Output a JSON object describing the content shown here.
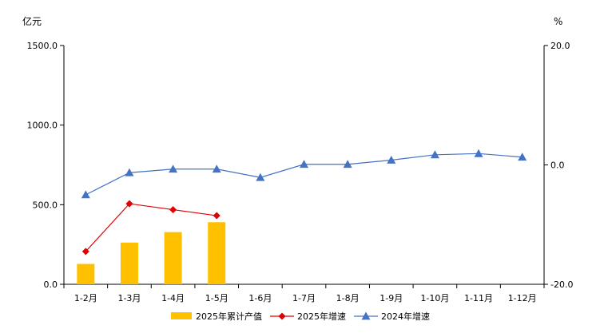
{
  "chart_data": {
    "type": "bar+line",
    "left_unit": "亿元",
    "right_unit": "%",
    "categories": [
      "1-2月",
      "1-3月",
      "1-4月",
      "1-5月",
      "1-6月",
      "1-7月",
      "1-8月",
      "1-9月",
      "1-10月",
      "1-11月",
      "1-12月"
    ],
    "left_axis": {
      "min": 0,
      "max": 1500,
      "ticks": [
        "0.0",
        "500.0",
        "1000.0",
        "1500.0"
      ]
    },
    "right_axis": {
      "min": -20,
      "max": 20,
      "ticks": [
        "-20.0",
        "0.0",
        "20.0"
      ]
    },
    "grid": false,
    "legend_position": "bottom",
    "series": [
      {
        "name": "2025年累计产值",
        "kind": "bar",
        "axis": "left",
        "color": "#FFC000",
        "values": [
          128,
          262,
          328,
          390,
          null,
          null,
          null,
          null,
          null,
          null,
          null
        ]
      },
      {
        "name": "2025年增速",
        "kind": "line",
        "axis": "right",
        "color": "#E00000",
        "marker": "diamond",
        "values": [
          -14.5,
          -6.5,
          -7.5,
          -8.5,
          null,
          null,
          null,
          null,
          null,
          null,
          null
        ]
      },
      {
        "name": "2024年增速",
        "kind": "line",
        "axis": "right",
        "color": "#4472C4",
        "marker": "triangle",
        "values": [
          -5.0,
          -1.3,
          -0.7,
          -0.7,
          -2.1,
          0.1,
          0.1,
          0.8,
          1.7,
          1.9,
          1.3
        ]
      }
    ]
  }
}
